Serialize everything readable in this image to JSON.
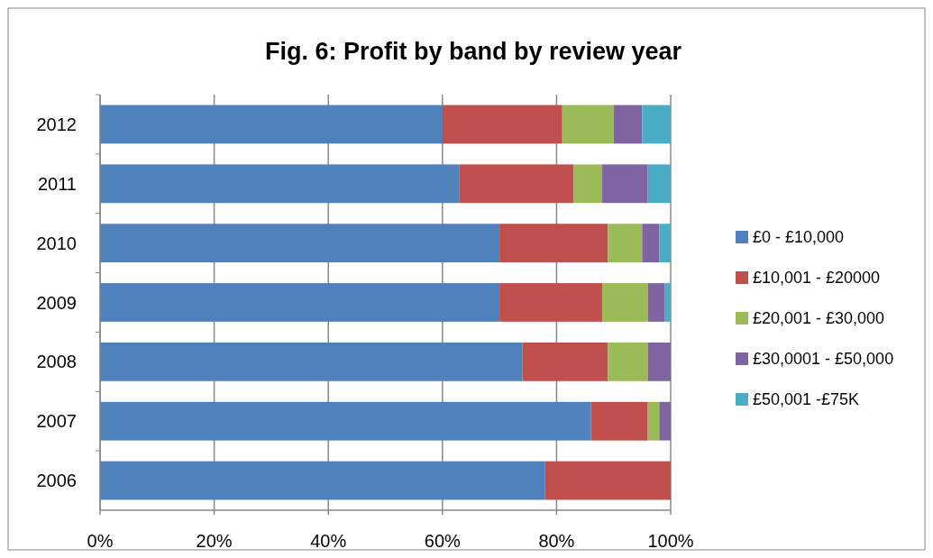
{
  "chart_data": {
    "type": "bar",
    "title": "Fig. 6: Profit by band by review year",
    "orientation": "horizontal",
    "stacked": true,
    "categories": [
      "2012",
      "2011",
      "2010",
      "2009",
      "2008",
      "2007",
      "2006"
    ],
    "series": [
      {
        "name": "£0 - £10,000",
        "color": "#4f81bd",
        "values": [
          60,
          63,
          70,
          70,
          74,
          86,
          78
        ]
      },
      {
        "name": "£10,001 - £20000",
        "color": "#c0504d",
        "values": [
          21,
          20,
          19,
          18,
          15,
          10,
          22
        ]
      },
      {
        "name": "£20,001 - £30,000",
        "color": "#9bbb59",
        "values": [
          9,
          5,
          6,
          8,
          7,
          2,
          0
        ]
      },
      {
        "name": "£30,0001 - £50,000",
        "color": "#8064a2",
        "values": [
          5,
          8,
          3,
          3,
          4,
          2,
          0
        ]
      },
      {
        "name": "£50,001 -£75K",
        "color": "#4bacc6",
        "values": [
          5,
          4,
          2,
          1,
          0,
          0,
          0
        ]
      }
    ],
    "xlim": [
      0,
      100
    ],
    "xticks": [
      {
        "value": 0,
        "label": "0%"
      },
      {
        "value": 20,
        "label": "20%"
      },
      {
        "value": 40,
        "label": "40%"
      },
      {
        "value": 60,
        "label": "60%"
      },
      {
        "value": 80,
        "label": "80%"
      },
      {
        "value": 100,
        "label": "100%"
      }
    ],
    "grid": "x",
    "legend": "right"
  }
}
